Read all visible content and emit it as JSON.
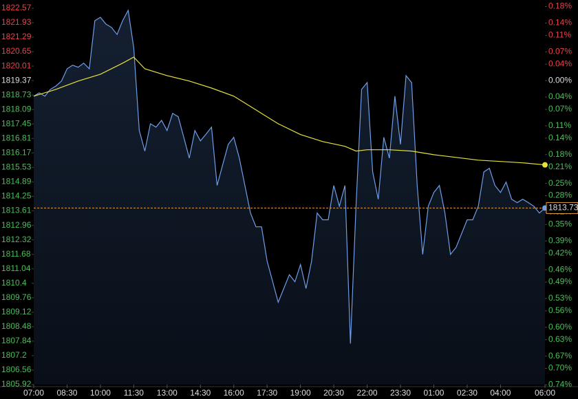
{
  "chart_data": {
    "type": "line",
    "background": "#000000",
    "ylim": [
      1805.92,
      1822.57
    ],
    "yticks": [
      1822.57,
      1821.93,
      1821.29,
      1820.65,
      1820.01,
      1819.37,
      1818.73,
      1818.09,
      1817.45,
      1816.81,
      1816.17,
      1815.53,
      1814.89,
      1814.25,
      1813.61,
      1812.96,
      1812.32,
      1811.68,
      1811.04,
      1810.4,
      1809.76,
      1809.12,
      1808.48,
      1807.84,
      1807.2,
      1806.56,
      1805.92
    ],
    "y2lim": [
      -0.7392,
      0.1759
    ],
    "y2ticks": [
      {
        "value": 0.18,
        "label": "0.18%"
      },
      {
        "value": 0.14,
        "label": "0.14%"
      },
      {
        "value": 0.11,
        "label": "0.11%"
      },
      {
        "value": 0.07,
        "label": "0.07%"
      },
      {
        "value": 0.04,
        "label": "0.04%"
      },
      {
        "value": 0,
        "label": "0.00%"
      },
      {
        "value": -0.04,
        "label": "0.04%"
      },
      {
        "value": -0.07,
        "label": "0.07%"
      },
      {
        "value": -0.11,
        "label": "0.11%"
      },
      {
        "value": -0.14,
        "label": "0.14%"
      },
      {
        "value": -0.18,
        "label": "0.18%"
      },
      {
        "value": -0.21,
        "label": "0.21%"
      },
      {
        "value": -0.25,
        "label": "0.25%"
      },
      {
        "value": -0.28,
        "label": "0.28%"
      },
      {
        "value": -0.32,
        "label": "0.32%"
      },
      {
        "value": -0.35,
        "label": "0.35%"
      },
      {
        "value": -0.39,
        "label": "0.39%"
      },
      {
        "value": -0.42,
        "label": "0.42%"
      },
      {
        "value": -0.46,
        "label": "0.46%"
      },
      {
        "value": -0.49,
        "label": "0.49%"
      },
      {
        "value": -0.53,
        "label": "0.53%"
      },
      {
        "value": -0.56,
        "label": "0.56%"
      },
      {
        "value": -0.6,
        "label": "0.60%"
      },
      {
        "value": -0.63,
        "label": "0.63%"
      },
      {
        "value": -0.67,
        "label": "0.67%"
      },
      {
        "value": -0.7,
        "label": "0.70%"
      },
      {
        "value": -0.74,
        "label": "0.74%"
      }
    ],
    "xlim": [
      "07:00",
      "06:00"
    ],
    "xticks": [
      "07:00",
      "08:30",
      "10:00",
      "11:30",
      "13:00",
      "14:30",
      "16:00",
      "17:30",
      "19:00",
      "20:30",
      "22:00",
      "23:30",
      "01:00",
      "02:30",
      "04:00",
      "06:00"
    ],
    "up_color": "#e8434a",
    "down_color": "#4cbf5a",
    "flat_color": "#dddddd",
    "series": [
      {
        "color": "#6f9ee8",
        "fill": true,
        "x": [
          "07:00",
          "07:15",
          "07:30",
          "07:45",
          "08:00",
          "08:15",
          "08:30",
          "08:45",
          "09:00",
          "09:15",
          "09:30",
          "09:45",
          "10:00",
          "10:15",
          "10:30",
          "10:45",
          "11:00",
          "11:15",
          "11:30",
          "11:45",
          "12:00",
          "12:15",
          "12:30",
          "12:45",
          "13:00",
          "13:15",
          "13:30",
          "13:45",
          "14:00",
          "14:15",
          "14:30",
          "14:45",
          "15:00",
          "15:15",
          "15:30",
          "15:45",
          "16:00",
          "16:15",
          "16:30",
          "16:45",
          "17:00",
          "17:15",
          "17:30",
          "17:45",
          "18:00",
          "18:15",
          "18:30",
          "18:45",
          "19:00",
          "19:15",
          "19:30",
          "19:45",
          "20:00",
          "20:15",
          "20:30",
          "20:45",
          "21:00",
          "21:15",
          "21:30",
          "21:45",
          "22:00",
          "22:15",
          "22:30",
          "22:45",
          "23:00",
          "23:15",
          "23:30",
          "23:45",
          "00:00",
          "00:15",
          "00:30",
          "00:45",
          "01:00",
          "01:15",
          "01:30",
          "01:45",
          "02:00",
          "02:15",
          "02:30",
          "02:45",
          "03:00",
          "03:15",
          "03:30",
          "03:45",
          "04:00",
          "04:15",
          "04:30",
          "04:45",
          "05:00",
          "05:15",
          "05:30",
          "05:45",
          "06:00"
        ],
        "values": [
          1818.68,
          1818.83,
          1818.68,
          1818.98,
          1819.13,
          1819.35,
          1819.89,
          1820.05,
          1819.96,
          1820.14,
          1819.89,
          1822.02,
          1822.17,
          1821.87,
          1821.72,
          1821.41,
          1822.02,
          1822.48,
          1820.81,
          1817.16,
          1816.25,
          1817.46,
          1817.31,
          1817.61,
          1817.16,
          1817.92,
          1817.77,
          1816.86,
          1815.94,
          1817.16,
          1816.7,
          1817.0,
          1817.31,
          1814.73,
          1815.64,
          1816.55,
          1816.86,
          1815.94,
          1814.73,
          1813.51,
          1812.9,
          1812.9,
          1811.38,
          1810.47,
          1809.56,
          1810.17,
          1810.78,
          1810.47,
          1811.23,
          1810.17,
          1811.38,
          1813.51,
          1813.21,
          1813.21,
          1814.73,
          1813.81,
          1814.73,
          1807.73,
          1813.81,
          1818.98,
          1819.28,
          1815.33,
          1814.12,
          1816.86,
          1815.94,
          1818.68,
          1816.55,
          1819.59,
          1819.28,
          1814.73,
          1811.68,
          1813.81,
          1814.42,
          1814.73,
          1813.51,
          1811.68,
          1811.99,
          1812.6,
          1813.21,
          1813.21,
          1813.81,
          1815.33,
          1815.49,
          1814.73,
          1814.42,
          1814.88,
          1814.12,
          1813.97,
          1814.12,
          1813.97,
          1813.81,
          1813.51,
          1813.73
        ]
      },
      {
        "color": "#e6e23c",
        "fill": false,
        "x": [
          "07:00",
          "08:00",
          "09:00",
          "10:00",
          "11:00",
          "11:30",
          "12:00",
          "13:00",
          "14:00",
          "15:00",
          "16:00",
          "17:00",
          "18:00",
          "19:00",
          "20:00",
          "21:00",
          "21:30",
          "22:00",
          "23:00",
          "00:00",
          "01:00",
          "02:00",
          "03:00",
          "04:00",
          "05:00",
          "06:00"
        ],
        "values": [
          1818.68,
          1818.98,
          1819.35,
          1819.65,
          1820.14,
          1820.41,
          1819.89,
          1819.59,
          1819.35,
          1819.04,
          1818.68,
          1818.07,
          1817.46,
          1816.98,
          1816.67,
          1816.46,
          1816.25,
          1816.31,
          1816.31,
          1816.25,
          1816.09,
          1815.97,
          1815.85,
          1815.79,
          1815.73,
          1815.64
        ]
      }
    ],
    "last_price_color": "#e8a040"
  }
}
